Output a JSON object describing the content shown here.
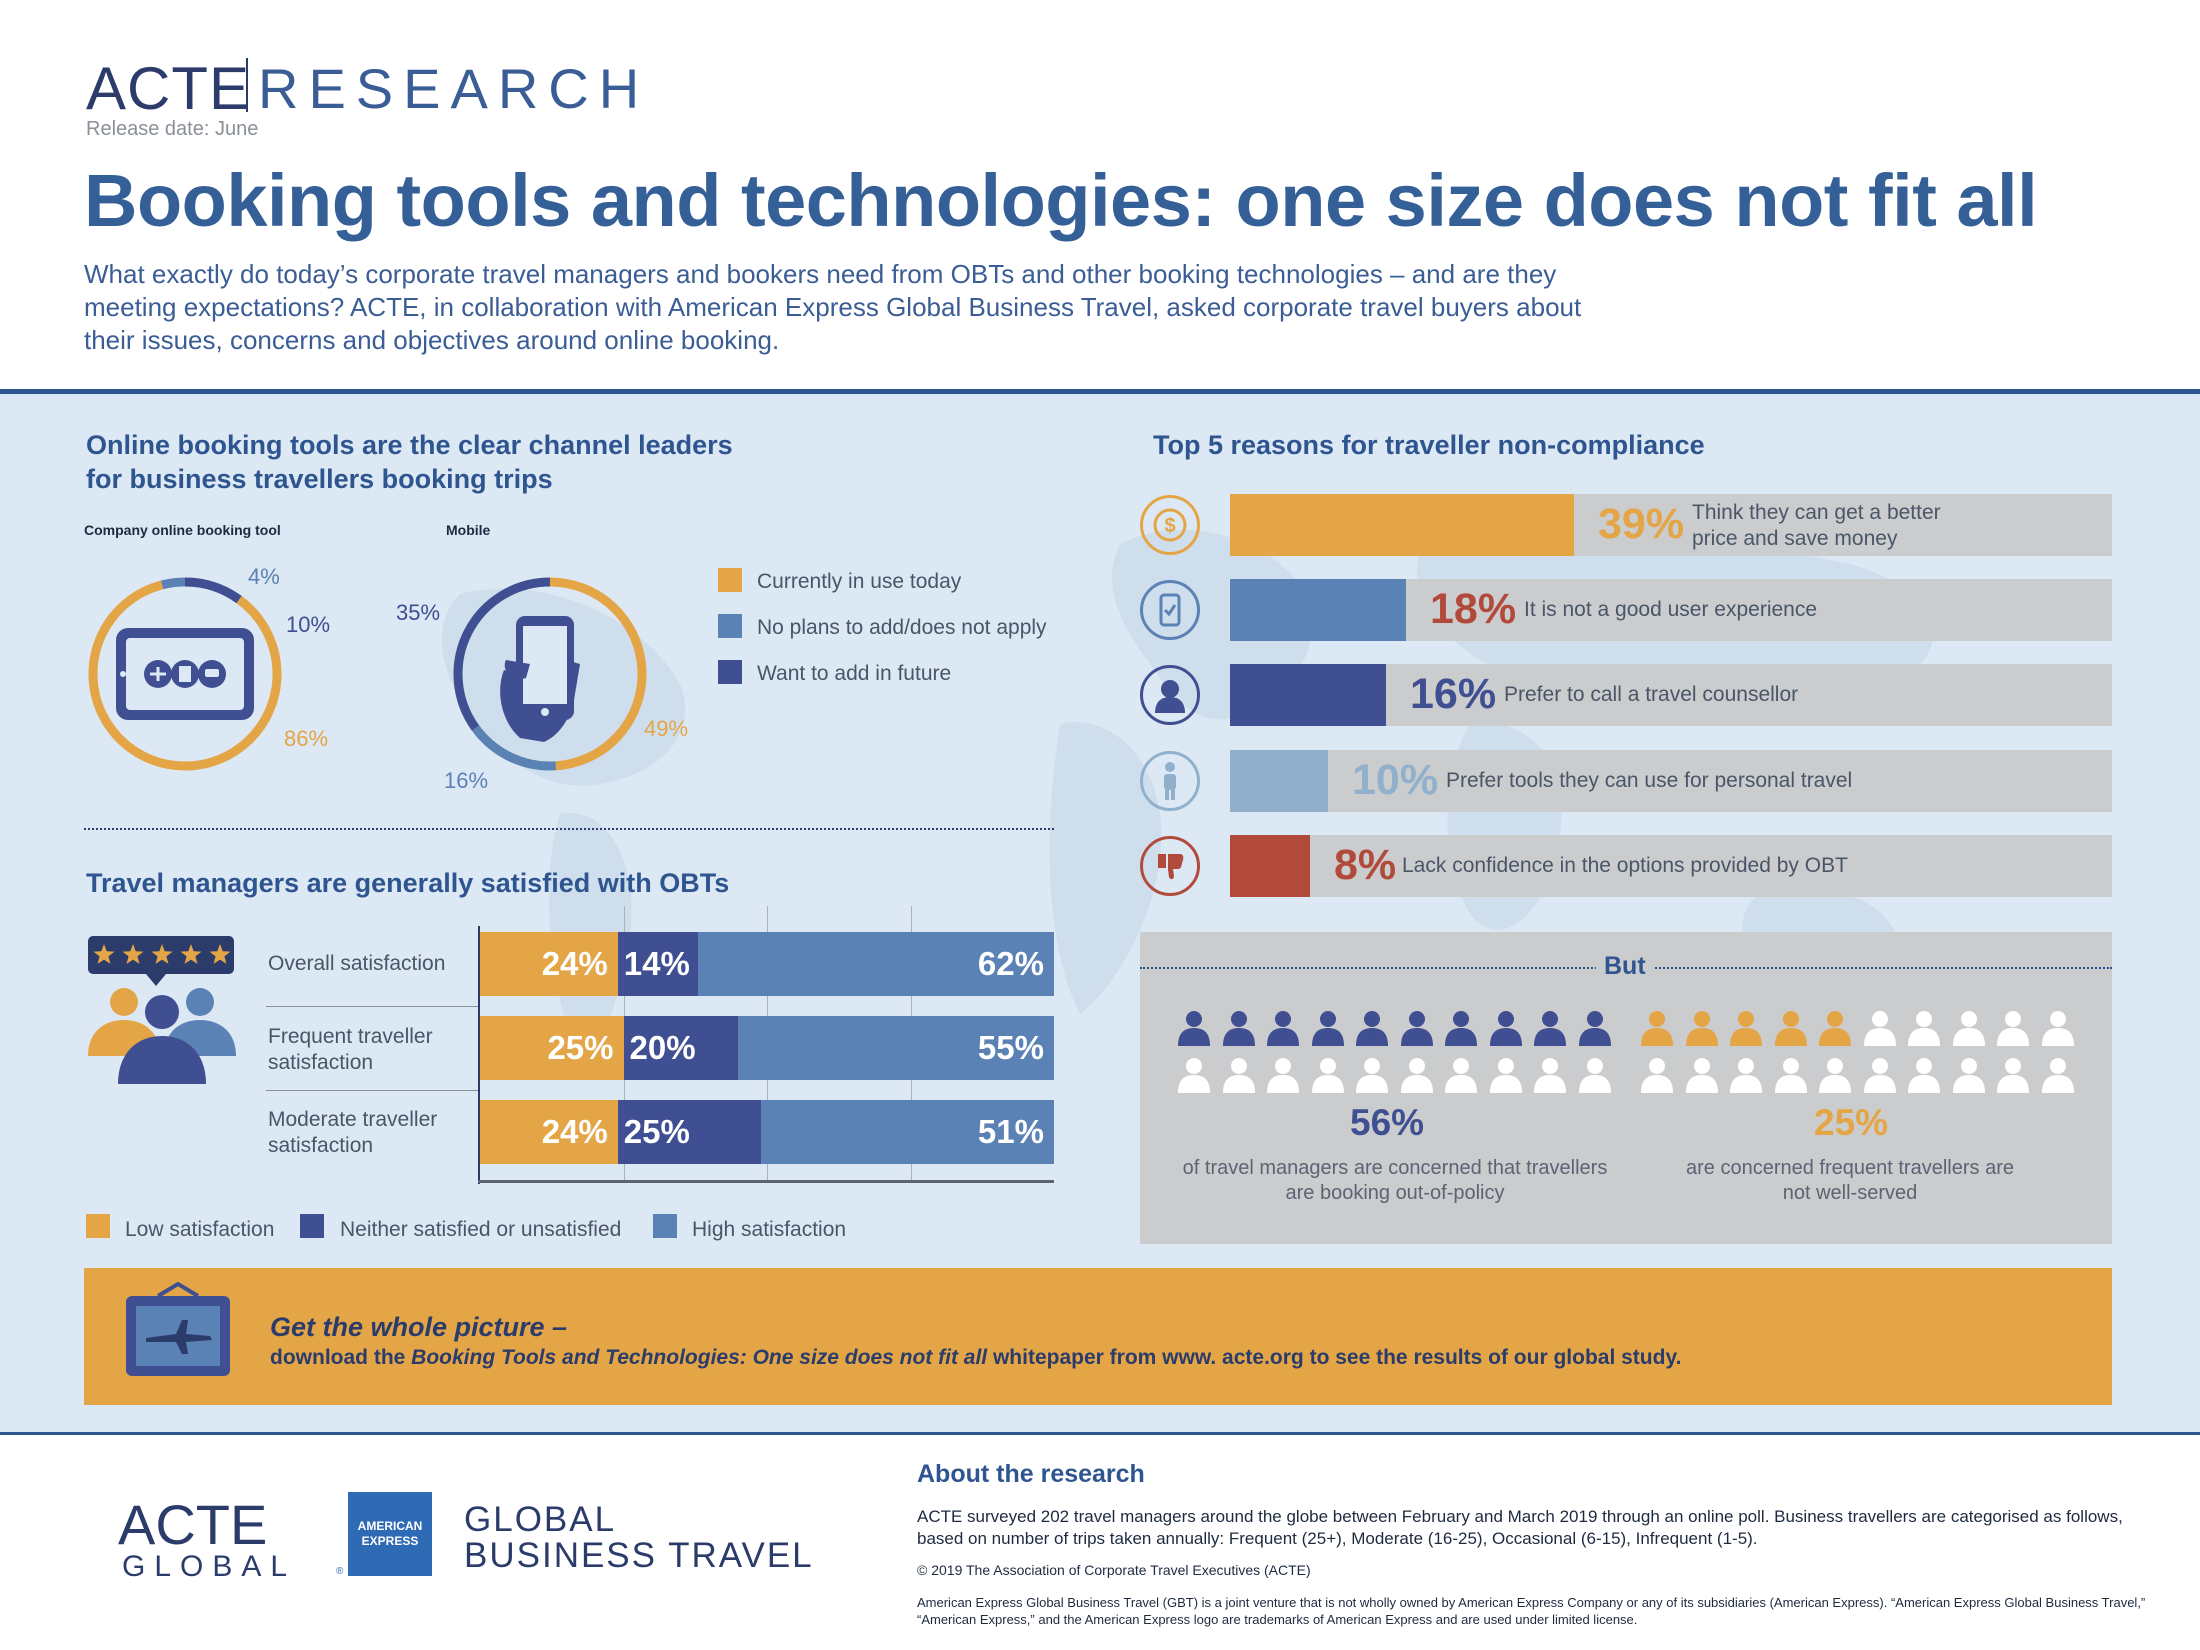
{
  "header": {
    "logo_acte": "ACTE",
    "logo_research": "RESEARCH",
    "release": "Release date: June",
    "title": "Booking tools and technologies: one size does not fit all",
    "intro": "What exactly do today’s corporate travel managers and bookers need from OBTs and other booking technologies – and are they meeting expectations? ACTE, in collaboration with American Express Global Business Travel, asked corporate travel buyers about their issues, concerns and objectives around online booking."
  },
  "channels": {
    "title_line1": "Online booking tools are the clear channel leaders",
    "title_line2": "for business travellers booking trips",
    "legend": [
      "Currently in use today",
      "No plans to add/does not apply",
      "Want to add in future"
    ]
  },
  "satisfaction": {
    "title": "Travel managers are generally satisfied with OBTs",
    "legend": [
      "Low satisfaction",
      "Neither satisfied or unsatisfied",
      "High satisfaction"
    ]
  },
  "reasons": {
    "title": "Top 5 reasons for traveller non-compliance"
  },
  "but": {
    "label": "But",
    "stat1": "56%",
    "stat1_caption_line1": "of travel managers are concerned that travellers",
    "stat1_caption_line2": "are booking out-of-policy",
    "stat2": "25%",
    "stat2_caption_line1": "are concerned frequent travellers are",
    "stat2_caption_line2": "not well-served"
  },
  "cta": {
    "title": "Get the whole picture –",
    "text_pre": "download the ",
    "text_italic": "Booking Tools and Technologies: One size does not  fit all",
    "text_post": " whitepaper from www. acte.org to see the results of our global study."
  },
  "footer": {
    "acte": "ACTE",
    "global": "GLOBAL",
    "amex_line1": "AMERICAN",
    "amex_line2": "EXPRESS",
    "gbt_line1": "GLOBAL",
    "gbt_line2": "BUSINESS TRAVEL",
    "about_title": "About the research",
    "about_text": "ACTE surveyed 202 travel managers around the globe between February and March 2019 through an online poll. Business travellers are categorised as follows, based on number of trips taken annually: Frequent (25+), Moderate (16-25), Occasional (6-15), Infrequent (1-5).",
    "copyright": "© 2019 The Association of Corporate Travel Executives (ACTE)",
    "disclaimer": "American Express Global Business Travel (GBT) is a joint venture that is not wholly owned by American Express Company or any of its subsidiaries (American Express). “American Express Global Business Travel,” “American Express,” and the American Express logo are trademarks of American Express and are used under limited license."
  },
  "colors": {
    "orange": "#e4a547",
    "mid_blue": "#5b82b4",
    "navy": "#3f4f91",
    "light_blue": "#90b0cc",
    "red": "#b24a3c",
    "grey": "#cbcccd"
  },
  "chart_data": [
    {
      "type": "pie",
      "title": "Company online booking tool",
      "categories": [
        "Currently in use today",
        "No plans to add/does not apply",
        "Want to add in future"
      ],
      "values": [
        86,
        4,
        10
      ],
      "labels": [
        "86%",
        "4%",
        "10%"
      ]
    },
    {
      "type": "pie",
      "title": "Mobile",
      "categories": [
        "Currently in use today",
        "No plans to add/does not apply",
        "Want to add in future"
      ],
      "values": [
        49,
        16,
        35
      ],
      "labels": [
        "49%",
        "16%",
        "35%"
      ]
    },
    {
      "type": "bar",
      "stacked": true,
      "orientation": "horizontal",
      "categories": [
        "Overall satisfaction",
        "Frequent traveller satisfaction",
        "Moderate traveller satisfaction"
      ],
      "series": [
        {
          "name": "Low satisfaction",
          "values": [
            24,
            25,
            24
          ],
          "labels": [
            "24%",
            "25%",
            "24%"
          ]
        },
        {
          "name": "Neither satisfied or unsatisfied",
          "values": [
            14,
            20,
            25
          ],
          "labels": [
            "14%",
            "20%",
            "25%"
          ]
        },
        {
          "name": "High satisfaction",
          "values": [
            62,
            55,
            51
          ],
          "labels": [
            "62%",
            "55%",
            "51%"
          ]
        }
      ]
    },
    {
      "type": "bar",
      "orientation": "horizontal",
      "categories": [
        "Think they can get  a better price and save money",
        "It is not a good user experience",
        "Prefer to call a travel counsellor",
        "Prefer tools they can use for personal travel",
        "Lack confidence in the options provided by OBT"
      ],
      "values": [
        39,
        18,
        16,
        10,
        8
      ],
      "labels": [
        "39%",
        "18%",
        "16%",
        "10%",
        "8%"
      ],
      "icons": [
        "dollar-coin-icon",
        "mobile-check-icon",
        "counsellor-icon",
        "personal-traveller-icon",
        "thumbs-down-icon"
      ]
    },
    {
      "type": "pictogram",
      "categories": [
        "Travel managers concerned about out-of-policy booking",
        "Concerned frequent travellers are not well-served"
      ],
      "values": [
        56,
        25
      ],
      "total_icons": 20
    }
  ]
}
